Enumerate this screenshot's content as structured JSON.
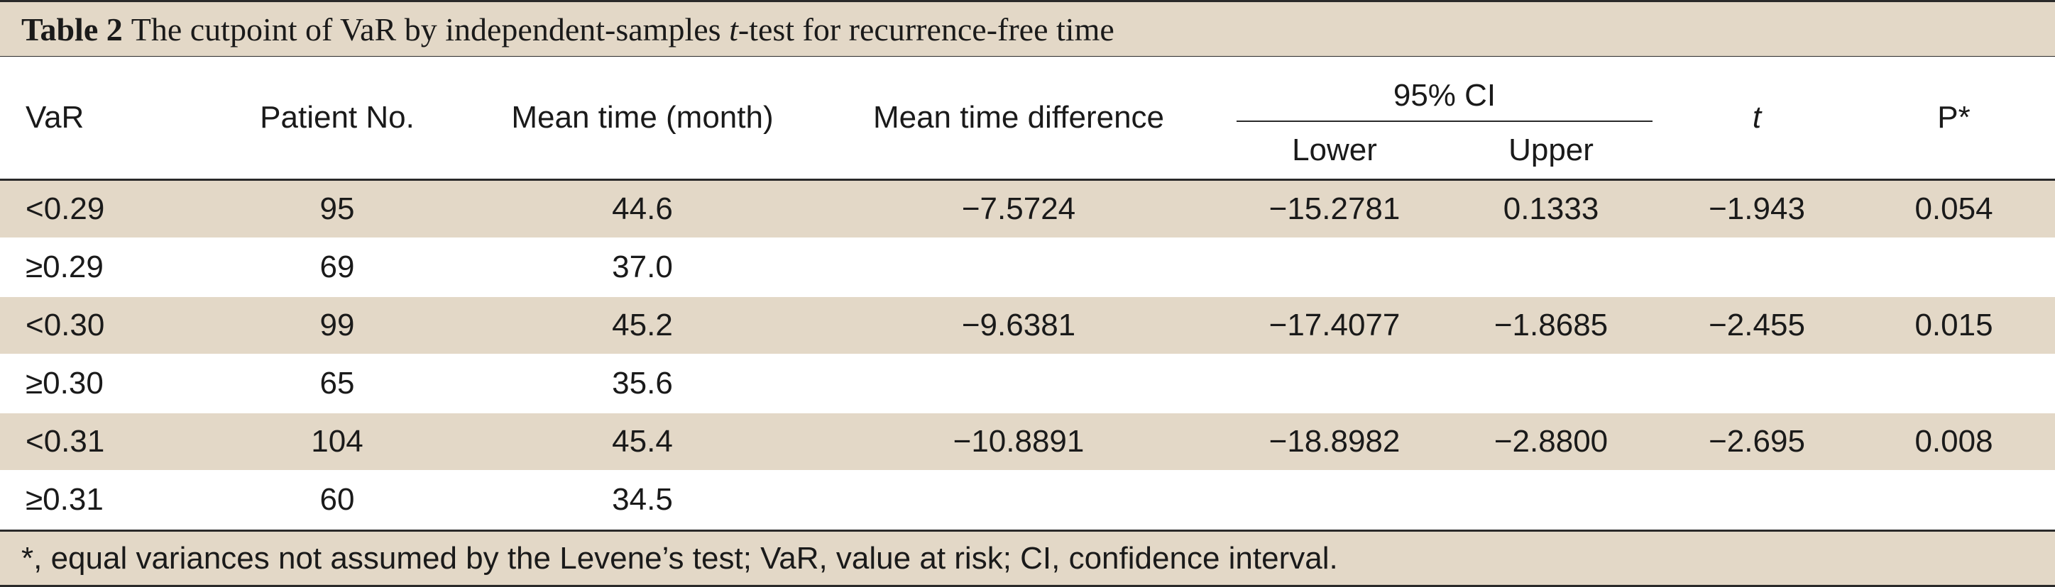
{
  "table": {
    "label": "Table 2",
    "caption_before": "The cutpoint of VaR by independent-samples",
    "caption_t": "t",
    "caption_after": "-test for recurrence-free time",
    "headers": {
      "var": "VaR",
      "patient_no": "Patient No.",
      "mean_time": "Mean time (month)",
      "mean_diff": "Mean time difference",
      "ci": "95% CI",
      "lower": "Lower",
      "upper": "Upper",
      "t": "t",
      "p": "P*"
    },
    "rows": [
      {
        "var": "<0.29",
        "n": "95",
        "mean": "44.6",
        "diff": "−7.5724",
        "lower": "−15.2781",
        "upper": "0.1333",
        "t": "−1.943",
        "p": "0.054"
      },
      {
        "var": "≥0.29",
        "n": "69",
        "mean": "37.0",
        "diff": "",
        "lower": "",
        "upper": "",
        "t": "",
        "p": ""
      },
      {
        "var": "<0.30",
        "n": "99",
        "mean": "45.2",
        "diff": "−9.6381",
        "lower": "−17.4077",
        "upper": "−1.8685",
        "t": "−2.455",
        "p": "0.015"
      },
      {
        "var": "≥0.30",
        "n": "65",
        "mean": "35.6",
        "diff": "",
        "lower": "",
        "upper": "",
        "t": "",
        "p": ""
      },
      {
        "var": "<0.31",
        "n": "104",
        "mean": "45.4",
        "diff": "−10.8891",
        "lower": "−18.8982",
        "upper": "−2.8800",
        "t": "−2.695",
        "p": "0.008"
      },
      {
        "var": "≥0.31",
        "n": "60",
        "mean": "34.5",
        "diff": "",
        "lower": "",
        "upper": "",
        "t": "",
        "p": ""
      }
    ],
    "footnote": "*, equal variances not assumed by the Levene’s test; VaR, value at risk; CI, confidence interval."
  },
  "colors": {
    "shade": "#e3d8c7",
    "rule": "#2a2a2a"
  }
}
